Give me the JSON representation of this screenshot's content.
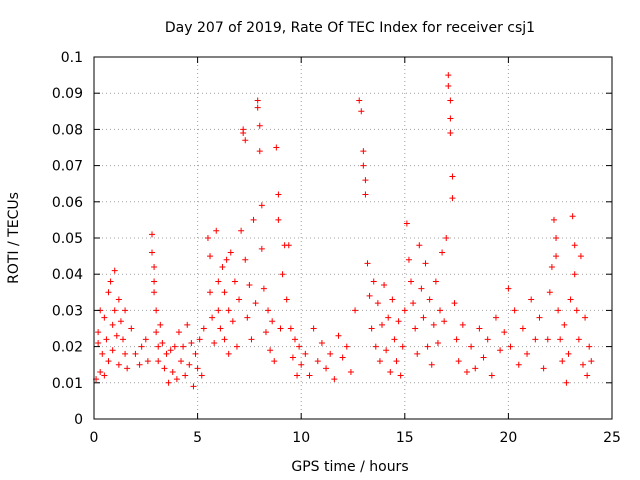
{
  "chart_data": {
    "type": "scatter",
    "title": "Day 207 of 2019, Rate Of TEC Index for receiver csj1",
    "xlabel": "GPS time / hours",
    "ylabel": "ROTI / TECUs",
    "xlim": [
      0,
      25
    ],
    "ylim": [
      0,
      0.1
    ],
    "x_ticks": [
      0,
      5,
      10,
      15,
      20,
      25
    ],
    "y_ticks": [
      0,
      0.01,
      0.02,
      0.03,
      0.04,
      0.05,
      0.06,
      0.07,
      0.08,
      0.09,
      0.1
    ],
    "x_tick_labels": [
      "0",
      "5",
      "10",
      "15",
      "20",
      "25"
    ],
    "y_tick_labels": [
      "0",
      "0.01",
      "0.02",
      "0.03",
      "0.04",
      "0.05",
      "0.06",
      "0.07",
      "0.08",
      "0.09",
      "0.1"
    ],
    "grid": true,
    "marker": "+",
    "color": "#ff0000",
    "series": [
      {
        "points": [
          [
            0.1,
            0.011
          ],
          [
            0.2,
            0.021
          ],
          [
            0.2,
            0.024
          ],
          [
            0.3,
            0.013
          ],
          [
            0.3,
            0.03
          ],
          [
            0.4,
            0.018
          ],
          [
            0.5,
            0.028
          ],
          [
            0.5,
            0.012
          ],
          [
            0.6,
            0.022
          ],
          [
            0.7,
            0.035
          ],
          [
            0.7,
            0.016
          ],
          [
            0.8,
            0.038
          ],
          [
            0.9,
            0.026
          ],
          [
            0.9,
            0.019
          ],
          [
            1.0,
            0.041
          ],
          [
            1.0,
            0.03
          ],
          [
            1.1,
            0.023
          ],
          [
            1.2,
            0.033
          ],
          [
            1.2,
            0.015
          ],
          [
            1.3,
            0.027
          ],
          [
            1.4,
            0.022
          ],
          [
            1.5,
            0.03
          ],
          [
            1.5,
            0.018
          ],
          [
            1.6,
            0.014
          ],
          [
            1.8,
            0.025
          ],
          [
            2.0,
            0.018
          ],
          [
            2.2,
            0.015
          ],
          [
            2.3,
            0.02
          ],
          [
            2.5,
            0.022
          ],
          [
            2.6,
            0.016
          ],
          [
            2.8,
            0.051
          ],
          [
            2.8,
            0.046
          ],
          [
            2.9,
            0.042
          ],
          [
            2.9,
            0.038
          ],
          [
            2.9,
            0.035
          ],
          [
            3.0,
            0.03
          ],
          [
            3.0,
            0.024
          ],
          [
            3.1,
            0.02
          ],
          [
            3.1,
            0.016
          ],
          [
            3.2,
            0.026
          ],
          [
            3.3,
            0.021
          ],
          [
            3.4,
            0.014
          ],
          [
            3.5,
            0.018
          ],
          [
            3.6,
            0.01
          ],
          [
            3.7,
            0.019
          ],
          [
            3.8,
            0.013
          ],
          [
            3.9,
            0.02
          ],
          [
            4.0,
            0.011
          ],
          [
            4.1,
            0.024
          ],
          [
            4.2,
            0.016
          ],
          [
            4.3,
            0.02
          ],
          [
            4.4,
            0.012
          ],
          [
            4.5,
            0.026
          ],
          [
            4.6,
            0.015
          ],
          [
            4.7,
            0.021
          ],
          [
            4.8,
            0.009
          ],
          [
            4.9,
            0.018
          ],
          [
            5.0,
            0.014
          ],
          [
            5.1,
            0.022
          ],
          [
            5.2,
            0.012
          ],
          [
            5.3,
            0.025
          ],
          [
            5.5,
            0.05
          ],
          [
            5.6,
            0.045
          ],
          [
            5.6,
            0.035
          ],
          [
            5.7,
            0.028
          ],
          [
            5.8,
            0.021
          ],
          [
            5.9,
            0.052
          ],
          [
            6.0,
            0.038
          ],
          [
            6.0,
            0.03
          ],
          [
            6.1,
            0.025
          ],
          [
            6.2,
            0.042
          ],
          [
            6.3,
            0.035
          ],
          [
            6.3,
            0.022
          ],
          [
            6.4,
            0.044
          ],
          [
            6.5,
            0.03
          ],
          [
            6.5,
            0.018
          ],
          [
            6.6,
            0.046
          ],
          [
            6.7,
            0.027
          ],
          [
            6.8,
            0.038
          ],
          [
            6.9,
            0.02
          ],
          [
            7.0,
            0.033
          ],
          [
            7.1,
            0.052
          ],
          [
            7.2,
            0.08
          ],
          [
            7.2,
            0.079
          ],
          [
            7.3,
            0.077
          ],
          [
            7.3,
            0.044
          ],
          [
            7.4,
            0.028
          ],
          [
            7.5,
            0.037
          ],
          [
            7.6,
            0.022
          ],
          [
            7.7,
            0.055
          ],
          [
            7.8,
            0.032
          ],
          [
            7.9,
            0.088
          ],
          [
            7.9,
            0.086
          ],
          [
            8.0,
            0.081
          ],
          [
            8.0,
            0.074
          ],
          [
            8.1,
            0.059
          ],
          [
            8.1,
            0.047
          ],
          [
            8.2,
            0.036
          ],
          [
            8.3,
            0.024
          ],
          [
            8.4,
            0.03
          ],
          [
            8.5,
            0.019
          ],
          [
            8.6,
            0.027
          ],
          [
            8.7,
            0.016
          ],
          [
            8.8,
            0.075
          ],
          [
            8.9,
            0.062
          ],
          [
            8.9,
            0.055
          ],
          [
            9.0,
            0.025
          ],
          [
            9.1,
            0.04
          ],
          [
            9.2,
            0.048
          ],
          [
            9.3,
            0.033
          ],
          [
            9.4,
            0.048
          ],
          [
            9.5,
            0.025
          ],
          [
            9.6,
            0.017
          ],
          [
            9.7,
            0.022
          ],
          [
            9.8,
            0.012
          ],
          [
            9.9,
            0.02
          ],
          [
            10.0,
            0.015
          ],
          [
            10.2,
            0.018
          ],
          [
            10.4,
            0.012
          ],
          [
            10.6,
            0.025
          ],
          [
            10.8,
            0.016
          ],
          [
            11.0,
            0.021
          ],
          [
            11.2,
            0.014
          ],
          [
            11.4,
            0.018
          ],
          [
            11.6,
            0.011
          ],
          [
            11.8,
            0.023
          ],
          [
            12.0,
            0.017
          ],
          [
            12.2,
            0.02
          ],
          [
            12.4,
            0.013
          ],
          [
            12.6,
            0.03
          ],
          [
            12.8,
            0.088
          ],
          [
            12.9,
            0.085
          ],
          [
            13.0,
            0.074
          ],
          [
            13.0,
            0.07
          ],
          [
            13.1,
            0.066
          ],
          [
            13.1,
            0.062
          ],
          [
            13.2,
            0.043
          ],
          [
            13.3,
            0.034
          ],
          [
            13.4,
            0.025
          ],
          [
            13.5,
            0.038
          ],
          [
            13.6,
            0.02
          ],
          [
            13.7,
            0.032
          ],
          [
            13.8,
            0.016
          ],
          [
            13.9,
            0.026
          ],
          [
            14.0,
            0.037
          ],
          [
            14.1,
            0.019
          ],
          [
            14.2,
            0.028
          ],
          [
            14.3,
            0.013
          ],
          [
            14.4,
            0.033
          ],
          [
            14.5,
            0.022
          ],
          [
            14.6,
            0.016
          ],
          [
            14.7,
            0.027
          ],
          [
            14.8,
            0.012
          ],
          [
            14.9,
            0.02
          ],
          [
            15.0,
            0.03
          ],
          [
            15.1,
            0.054
          ],
          [
            15.2,
            0.044
          ],
          [
            15.3,
            0.038
          ],
          [
            15.4,
            0.032
          ],
          [
            15.5,
            0.025
          ],
          [
            15.6,
            0.018
          ],
          [
            15.7,
            0.048
          ],
          [
            15.8,
            0.036
          ],
          [
            15.9,
            0.028
          ],
          [
            16.0,
            0.043
          ],
          [
            16.1,
            0.02
          ],
          [
            16.2,
            0.033
          ],
          [
            16.3,
            0.015
          ],
          [
            16.4,
            0.026
          ],
          [
            16.5,
            0.038
          ],
          [
            16.6,
            0.021
          ],
          [
            16.7,
            0.03
          ],
          [
            16.8,
            0.046
          ],
          [
            16.9,
            0.027
          ],
          [
            17.0,
            0.05
          ],
          [
            17.1,
            0.095
          ],
          [
            17.1,
            0.092
          ],
          [
            17.2,
            0.088
          ],
          [
            17.2,
            0.083
          ],
          [
            17.2,
            0.079
          ],
          [
            17.3,
            0.067
          ],
          [
            17.3,
            0.061
          ],
          [
            17.4,
            0.032
          ],
          [
            17.5,
            0.022
          ],
          [
            17.6,
            0.016
          ],
          [
            17.8,
            0.026
          ],
          [
            18.0,
            0.013
          ],
          [
            18.2,
            0.02
          ],
          [
            18.4,
            0.014
          ],
          [
            18.6,
            0.025
          ],
          [
            18.8,
            0.017
          ],
          [
            19.0,
            0.022
          ],
          [
            19.2,
            0.012
          ],
          [
            19.4,
            0.028
          ],
          [
            19.6,
            0.019
          ],
          [
            19.8,
            0.024
          ],
          [
            20.0,
            0.036
          ],
          [
            20.1,
            0.02
          ],
          [
            20.3,
            0.03
          ],
          [
            20.5,
            0.015
          ],
          [
            20.7,
            0.025
          ],
          [
            20.9,
            0.018
          ],
          [
            21.1,
            0.033
          ],
          [
            21.3,
            0.022
          ],
          [
            21.5,
            0.028
          ],
          [
            21.7,
            0.014
          ],
          [
            21.9,
            0.022
          ],
          [
            22.0,
            0.035
          ],
          [
            22.1,
            0.042
          ],
          [
            22.2,
            0.055
          ],
          [
            22.3,
            0.05
          ],
          [
            22.3,
            0.045
          ],
          [
            22.4,
            0.03
          ],
          [
            22.5,
            0.022
          ],
          [
            22.6,
            0.016
          ],
          [
            22.7,
            0.026
          ],
          [
            22.8,
            0.01
          ],
          [
            22.9,
            0.018
          ],
          [
            23.0,
            0.033
          ],
          [
            23.1,
            0.056
          ],
          [
            23.2,
            0.048
          ],
          [
            23.2,
            0.04
          ],
          [
            23.3,
            0.03
          ],
          [
            23.4,
            0.022
          ],
          [
            23.5,
            0.045
          ],
          [
            23.6,
            0.015
          ],
          [
            23.7,
            0.028
          ],
          [
            23.8,
            0.012
          ],
          [
            23.9,
            0.02
          ],
          [
            24.0,
            0.016
          ]
        ]
      }
    ]
  }
}
